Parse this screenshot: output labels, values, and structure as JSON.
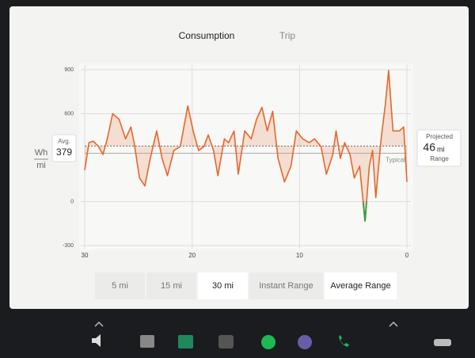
{
  "tabs": [
    "Consumption",
    "Trip"
  ],
  "units": {
    "top": "Wh",
    "bottom": "mi"
  },
  "average": {
    "label": "Avg.",
    "value": 379
  },
  "projected": {
    "label": "Projected",
    "value": 46,
    "unit": "mi",
    "caption": "Range"
  },
  "buttons": [
    "5 mi",
    "15 mi",
    "30 mi",
    "Instant Range",
    "Average Range"
  ],
  "selected_buttons": [
    2,
    4
  ],
  "chart_data": {
    "type": "line",
    "x": [
      30,
      29.6,
      29.2,
      28.7,
      28.3,
      27.9,
      27.4,
      26.8,
      26.2,
      25.7,
      25.4,
      24.9,
      24.4,
      23.9,
      23.3,
      22.8,
      22.3,
      21.7,
      21.1,
      20.4,
      19.9,
      19.4,
      18.9,
      18.5,
      18.0,
      17.6,
      17.0,
      16.6,
      16.1,
      15.7,
      15.1,
      14.5,
      14.0,
      13.5,
      13.0,
      12.5,
      12.0,
      11.4,
      10.8,
      10.3,
      9.7,
      9.1,
      8.6,
      8.0,
      7.5,
      6.9,
      6.6,
      6.2,
      5.8,
      5.3,
      4.9,
      4.4,
      3.9,
      3.5,
      3.2,
      2.9,
      2.4,
      2.0,
      1.7,
      1.3,
      0.7,
      0.3,
      0.0
    ],
    "values": [
      214,
      402,
      412,
      375,
      321,
      428,
      600,
      562,
      428,
      509,
      402,
      161,
      107,
      295,
      482,
      295,
      177,
      348,
      375,
      653,
      482,
      348,
      375,
      455,
      348,
      177,
      428,
      402,
      482,
      187,
      482,
      428,
      562,
      643,
      482,
      616,
      295,
      134,
      241,
      482,
      428,
      402,
      428,
      375,
      187,
      321,
      482,
      295,
      402,
      321,
      161,
      241,
      -134,
      241,
      348,
      27,
      428,
      670,
      894,
      482,
      482,
      509,
      134
    ],
    "color": "#e5672b",
    "negative_color": "#3b9a3f",
    "xlim": [
      30,
      0
    ],
    "xticks": [
      30,
      20,
      10,
      0
    ],
    "ylim": [
      -300,
      900
    ],
    "yticks": [
      -300,
      0,
      600,
      900
    ],
    "grid": true,
    "typical_label": "Typical",
    "typical_value": 330
  }
}
